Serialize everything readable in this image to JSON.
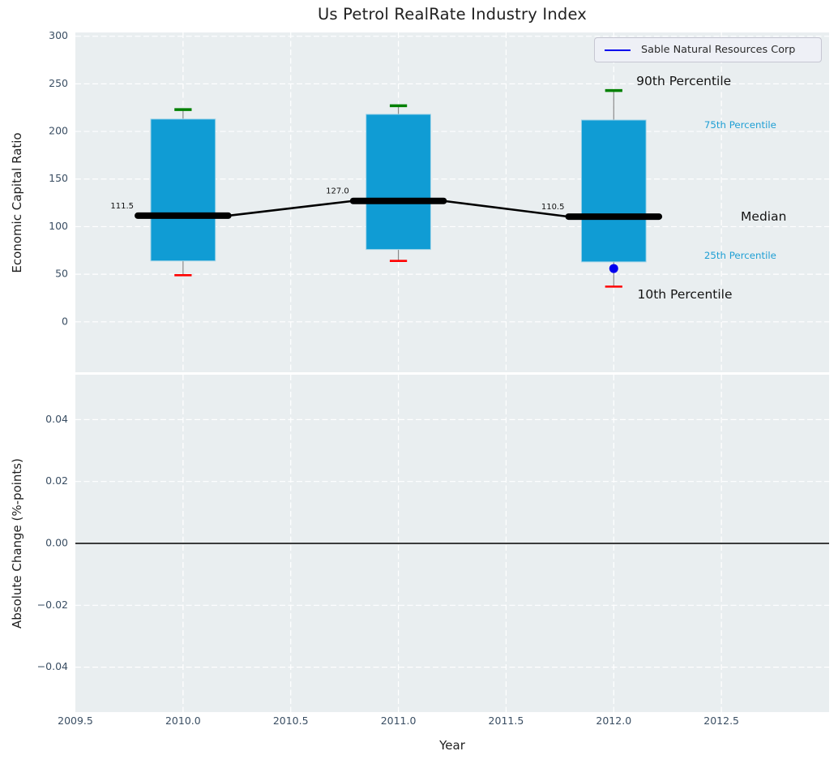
{
  "title": "Us Petrol RealRate Industry Index",
  "legend": {
    "label": "Sable Natural Resources Corp",
    "line_color": "#0000ee"
  },
  "colors": {
    "axes_bg": "#e9eef0",
    "grid": "#ffffff",
    "bar": "#109cd4",
    "bar_edge": "#9fd3e8",
    "median_line": "#000000",
    "whisker": "#8a8a8a",
    "cap_90": "#008000",
    "cap_10": "#ff0000",
    "company": "#0000ee",
    "tick_text": "#3a4e63",
    "dark_text": "#141414",
    "percentile_text": "#1f9fd4",
    "zero_line": "#000000"
  },
  "chart_data": [
    {
      "type": "bar",
      "subtype": "percentile-box-with-median-line",
      "title": "Us Petrol RealRate Industry Index",
      "ylabel": "Economic Capital Ratio",
      "categories": [
        2010,
        2011,
        2012
      ],
      "series": [
        {
          "name": "90th Percentile",
          "role": "whisker_high",
          "values": [
            223,
            227,
            243
          ]
        },
        {
          "name": "75th Percentile",
          "role": "box_top",
          "values": [
            213,
            218,
            212
          ]
        },
        {
          "name": "Median",
          "role": "median",
          "values": [
            111.5,
            127.0,
            110.5
          ]
        },
        {
          "name": "25th Percentile",
          "role": "box_bottom",
          "values": [
            64,
            76,
            63
          ]
        },
        {
          "name": "10th Percentile",
          "role": "whisker_low",
          "values": [
            49,
            64,
            37
          ]
        },
        {
          "name": "Sable Natural Resources Corp",
          "role": "scatter_point",
          "values": [
            null,
            null,
            56
          ]
        }
      ],
      "median_labels": [
        "111.5",
        "127.0",
        "110.5"
      ],
      "xlim": [
        2009.5,
        2013.0
      ],
      "ylim": [
        -53,
        304
      ],
      "yticks": [
        {
          "v": 300,
          "label": "300"
        },
        {
          "v": 250,
          "label": "250"
        },
        {
          "v": 200,
          "label": "200"
        },
        {
          "v": 150,
          "label": "150"
        },
        {
          "v": 100,
          "label": "100"
        },
        {
          "v": 50,
          "label": "50"
        },
        {
          "v": 0,
          "label": "0"
        }
      ],
      "grid": true,
      "legend_position": "upper right",
      "annotations": [
        {
          "text": "90th Percentile",
          "x": 2012.105,
          "y": 252.5,
          "style": "large"
        },
        {
          "text": "75th Percentile",
          "x": 2012.42,
          "y": 206.5,
          "style": "small"
        },
        {
          "text": "Median",
          "x": 2012.59,
          "y": 111.0,
          "style": "large"
        },
        {
          "text": "25th Percentile",
          "x": 2012.42,
          "y": 70.0,
          "style": "small"
        },
        {
          "text": "10th Percentile",
          "x": 2012.11,
          "y": 29.0,
          "style": "large"
        }
      ]
    },
    {
      "type": "line",
      "ylabel": "Absolute Change (%-points)",
      "xlabel": "Year",
      "xlim": [
        2009.5,
        2013.0
      ],
      "ylim": [
        -0.0545,
        0.0545
      ],
      "xticks": [
        {
          "v": 2009.5,
          "label": "2009.5"
        },
        {
          "v": 2010.0,
          "label": "2010.0"
        },
        {
          "v": 2010.5,
          "label": "2010.5"
        },
        {
          "v": 2011.0,
          "label": "2011.0"
        },
        {
          "v": 2011.5,
          "label": "2011.5"
        },
        {
          "v": 2012.0,
          "label": "2012.0"
        },
        {
          "v": 2012.5,
          "label": "2012.5"
        }
      ],
      "yticks": [
        {
          "v": 0.04,
          "label": "0.04"
        },
        {
          "v": 0.02,
          "label": "0.02"
        },
        {
          "v": 0.0,
          "label": "0.00"
        },
        {
          "v": -0.02,
          "label": "−0.02"
        },
        {
          "v": -0.04,
          "label": "−0.04"
        }
      ],
      "zero_line": 0.0,
      "series": [],
      "grid": true
    }
  ]
}
